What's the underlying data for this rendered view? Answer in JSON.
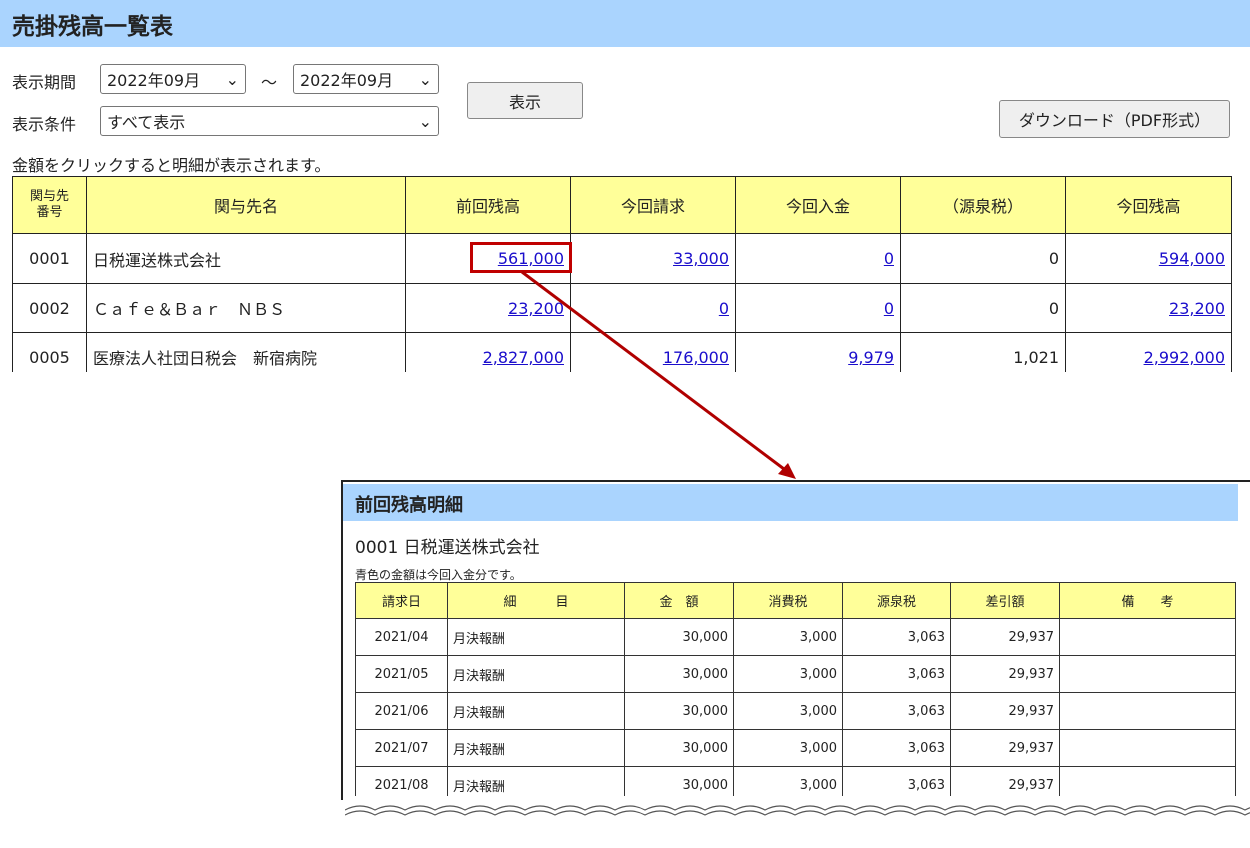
{
  "title": "売掛残高一覧表",
  "filters": {
    "period_label": "表示期間",
    "period_from": "2022年09月",
    "tilde": "～",
    "period_to": "2022年09月",
    "condition_label": "表示条件",
    "condition": "すべて表示",
    "show_button": "表示",
    "download_button": "ダウンロード（PDF形式）"
  },
  "hint": "金額をクリックすると明細が表示されます。",
  "table": {
    "headers": [
      "関与先番号",
      "関与先名",
      "前回残高",
      "今回請求",
      "今回入金",
      "（源泉税）",
      "今回残高"
    ],
    "rows": [
      [
        "0001",
        "日税運送株式会社",
        "561,000",
        "33,000",
        "0",
        "0",
        "594,000"
      ],
      [
        "0002",
        "Ｃａｆｅ＆Ｂａｒ　ＮＢＳ",
        "23,200",
        "0",
        "0",
        "0",
        "23,200"
      ],
      [
        "0005",
        "医療法人社団日税会　新宿病院",
        "2,827,000",
        "176,000",
        "9,979",
        "1,021",
        "2,992,000"
      ]
    ]
  },
  "highlight_color": "#c00000",
  "detail": {
    "title": "前回残高明細",
    "client": "0001 日税運送株式会社",
    "note": "青色の金額は今回入金分です。",
    "headers": [
      "請求日",
      "細　　　目",
      "金　額",
      "消費税",
      "源泉税",
      "差引額",
      "備　　考"
    ],
    "rows": [
      [
        "2021/04",
        "月決報酬",
        "30,000",
        "3,000",
        "3,063",
        "29,937",
        ""
      ],
      [
        "2021/05",
        "月決報酬",
        "30,000",
        "3,000",
        "3,063",
        "29,937",
        ""
      ],
      [
        "2021/06",
        "月決報酬",
        "30,000",
        "3,000",
        "3,063",
        "29,937",
        ""
      ],
      [
        "2021/07",
        "月決報酬",
        "30,000",
        "3,000",
        "3,063",
        "29,937",
        ""
      ],
      [
        "2021/08",
        "月決報酬",
        "30,000",
        "3,000",
        "3,063",
        "29,937",
        ""
      ]
    ]
  }
}
